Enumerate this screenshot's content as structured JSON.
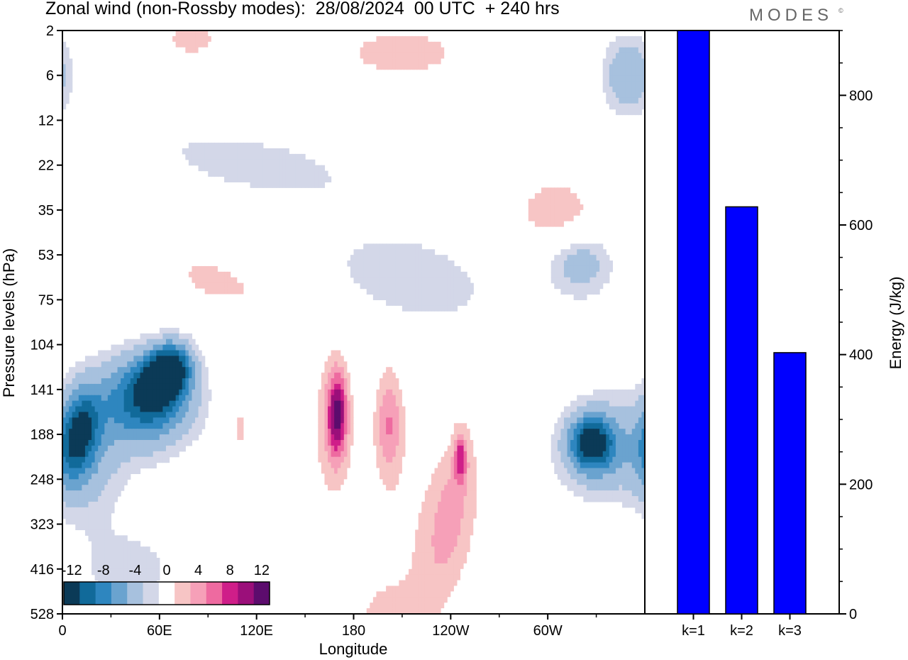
{
  "title": "Zonal wind (non-Rossby modes):  28/08/2024  00 UTC  + 240 hrs",
  "brand": "MODES",
  "brand_mark": "©",
  "colors": {
    "palette": [
      "#0b3a57",
      "#116a9a",
      "#2e86bf",
      "#6aa3cf",
      "#a7c1de",
      "#d3d7e8",
      "#ffffff",
      "#f7c5c5",
      "#f6a0b8",
      "#ee6aa0",
      "#cf1e89",
      "#9b0f7a",
      "#5c0c6d"
    ],
    "bar_fill": "#0000ff",
    "bar_stroke": "#000000"
  },
  "chart_data": [
    {
      "type": "heatmap",
      "title": "Zonal wind (non-Rossby modes):  28/08/2024  00 UTC  + 240 hrs",
      "xlabel": "Longitude",
      "ylabel": "Pressure levels (hPa)",
      "x_ticks": [
        "0",
        "60E",
        "120E",
        "180",
        "120W",
        "60W"
      ],
      "x_range_deg": [
        0,
        360
      ],
      "y_ticks": [
        "2",
        "6",
        "12",
        "22",
        "35",
        "53",
        "75",
        "104",
        "141",
        "188",
        "248",
        "323",
        "416",
        "528"
      ],
      "colorbar": {
        "labels": [
          "-12",
          "-8",
          "-4",
          "0",
          "4",
          "8",
          "12"
        ],
        "step": 2
      },
      "blobs": [
        {
          "lon": 65,
          "lev": 7.6,
          "w": 15,
          "h": 0.7,
          "val": -14,
          "rot": -22
        },
        {
          "lon": 55,
          "lev": 8.1,
          "w": 30,
          "h": 1.05,
          "val": -9,
          "rot": -24
        },
        {
          "lon": 40,
          "lev": 8.6,
          "w": 40,
          "h": 1.2,
          "val": -3,
          "rot": -22
        },
        {
          "lon": 10,
          "lev": 9.0,
          "w": 14,
          "h": 1.2,
          "val": -9,
          "rot": -10
        },
        {
          "lon": 15,
          "lev": 9.6,
          "w": 26,
          "h": 1.6,
          "val": -3,
          "rot": 0
        },
        {
          "lon": 327,
          "lev": 9.2,
          "w": 16,
          "h": 0.7,
          "val": -10,
          "rot": 0
        },
        {
          "lon": 335,
          "lev": 9.3,
          "w": 33,
          "h": 1.3,
          "val": -4,
          "rot": -15
        },
        {
          "lon": 170,
          "lev": 8.5,
          "w": 7,
          "h": 1.1,
          "val": 9,
          "rot": 0
        },
        {
          "lon": 168,
          "lev": 8.8,
          "w": 14,
          "h": 1.9,
          "val": 5,
          "rot": 0
        },
        {
          "lon": 202,
          "lev": 8.8,
          "w": 11,
          "h": 1.5,
          "val": 6,
          "rot": 0
        },
        {
          "lon": 246,
          "lev": 9.5,
          "w": 5,
          "h": 0.7,
          "val": 7,
          "rot": 0
        },
        {
          "lon": 240,
          "lev": 10.8,
          "w": 18,
          "h": 2.2,
          "val": 4,
          "rot": -10
        },
        {
          "lon": 225,
          "lev": 11.5,
          "w": 42,
          "h": 3.0,
          "val": 1.5,
          "rot": -8
        },
        {
          "lon": 95,
          "lev": 5.6,
          "w": 48,
          "h": 0.75,
          "val": 2.5,
          "rot": -18
        },
        {
          "lon": 215,
          "lev": 5.5,
          "w": 60,
          "h": 1.1,
          "val": -2,
          "rot": -15
        },
        {
          "lon": 320,
          "lev": 5.2,
          "w": 24,
          "h": 0.9,
          "val": -3,
          "rot": 0
        },
        {
          "lon": 305,
          "lev": 4.0,
          "w": 35,
          "h": 1.0,
          "val": 3,
          "rot": 0
        },
        {
          "lon": 210,
          "lev": 0.5,
          "w": 40,
          "h": 0.6,
          "val": 4,
          "rot": 0
        },
        {
          "lon": 80,
          "lev": 0.2,
          "w": 22,
          "h": 0.5,
          "val": 3,
          "rot": 0
        },
        {
          "lon": 350,
          "lev": 1.0,
          "w": 18,
          "h": 1.0,
          "val": -4,
          "rot": 0
        },
        {
          "lon": 120,
          "lev": 3.0,
          "w": 70,
          "h": 0.7,
          "val": -2,
          "rot": -10
        },
        {
          "lon": 200,
          "lev": 13.0,
          "w": 30,
          "h": 1.0,
          "val": 2,
          "rot": 0
        },
        {
          "lon": 40,
          "lev": 12.0,
          "w": 40,
          "h": 1.2,
          "val": -1.5,
          "rot": 0
        },
        {
          "lon": 110,
          "lev": 8.9,
          "w": 6,
          "h": 0.8,
          "val": 2.5,
          "rot": 0
        }
      ]
    },
    {
      "type": "bar",
      "categories": [
        "k=1",
        "k=2",
        "k=3"
      ],
      "values": [
        900,
        628,
        403
      ],
      "ylabel": "Energy (J/kg)",
      "ylim": [
        0,
        900
      ],
      "y_ticks": [
        0,
        200,
        400,
        600,
        800
      ]
    }
  ]
}
